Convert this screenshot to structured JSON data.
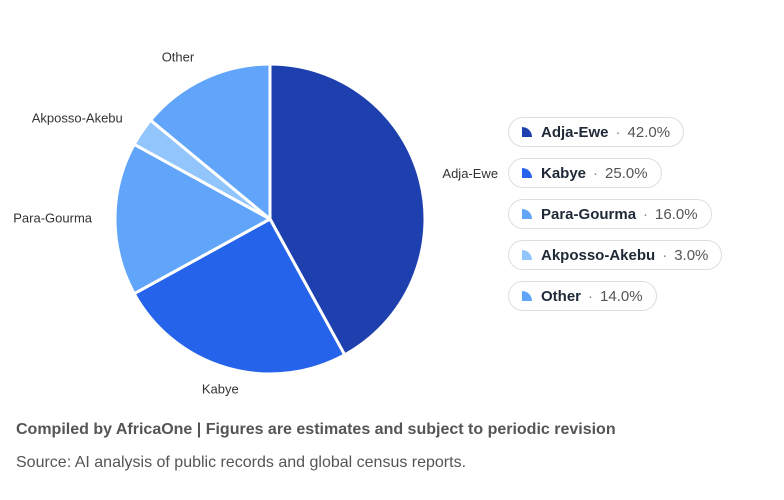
{
  "chart_data": {
    "type": "pie",
    "categories": [
      "Adja-Ewe",
      "Kabye",
      "Para-Gourma",
      "Akposso-Akebu",
      "Other"
    ],
    "values": [
      42.0,
      25.0,
      16.0,
      3.0,
      14.0
    ],
    "value_labels": [
      "42.0%",
      "25.0%",
      "16.0%",
      "3.0%",
      "14.0%"
    ],
    "colors": [
      "#1e40af",
      "#2563eb",
      "#60a5fa",
      "#93c5fd",
      "#60a5fa"
    ],
    "start_angle": "12 o'clock",
    "direction": "clockwise",
    "legend_position": "right"
  },
  "footer": {
    "note": "Compiled by AfricaOne | Figures are estimates and subject to periodic revision",
    "source": "Source: AI analysis of public records and global census reports."
  }
}
